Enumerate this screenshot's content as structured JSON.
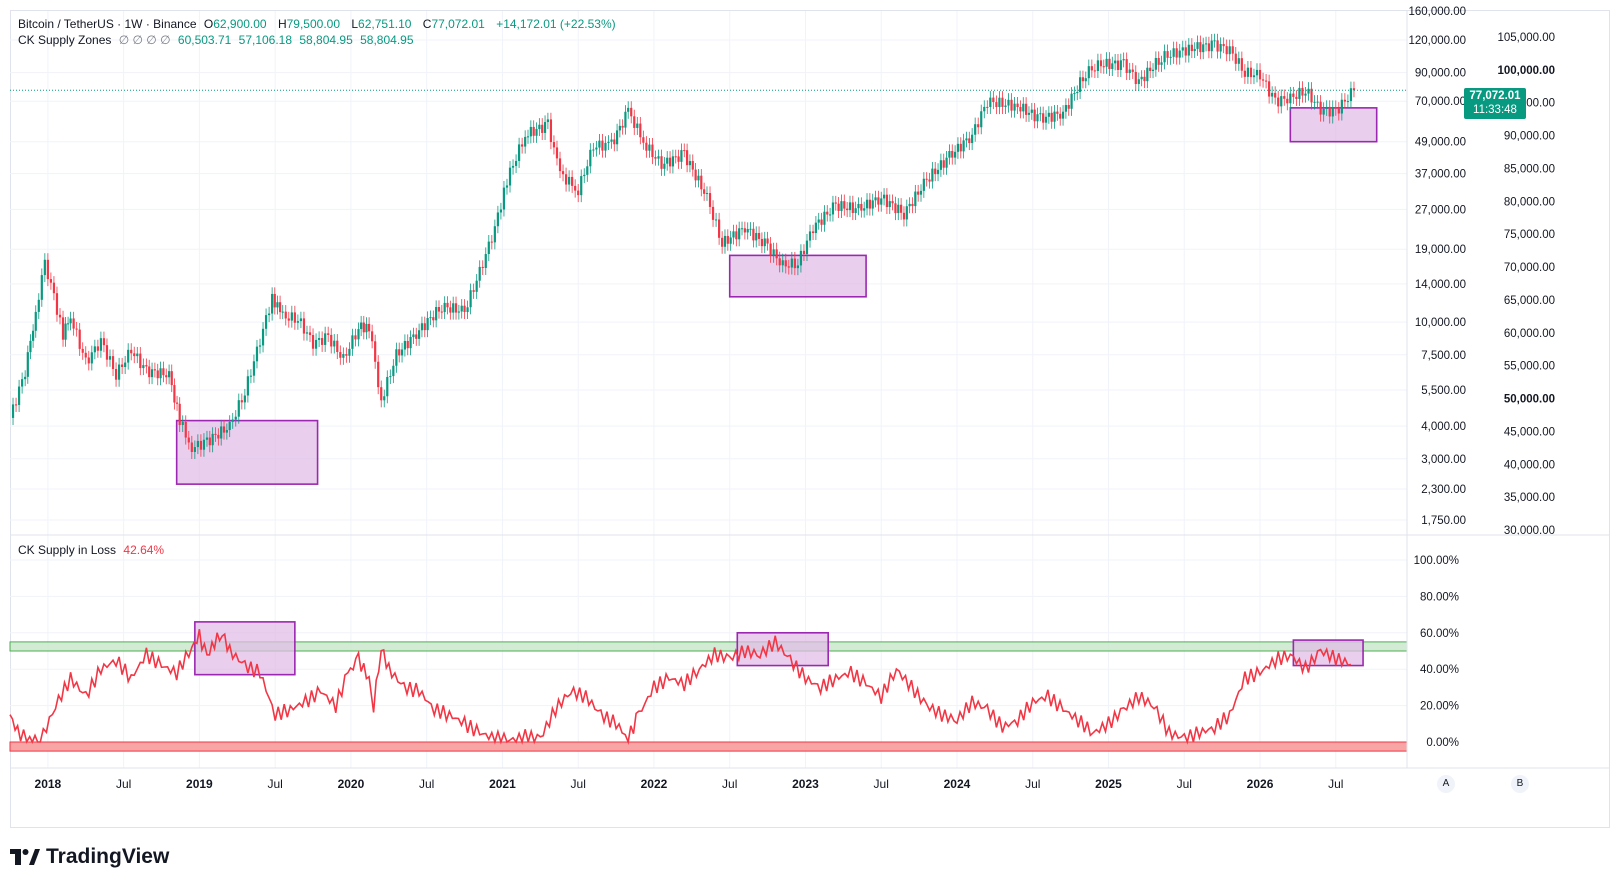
{
  "legend_main": {
    "symbol": "Bitcoin / TetherUS · 1W · Binance",
    "open_label": "O",
    "open": "62,900.00",
    "high_label": "H",
    "high": "79,500.00",
    "low_label": "L",
    "low": "62,751.10",
    "close_label": "C",
    "close": "77,072.01",
    "change": "+14,172.01 (+22.53%)"
  },
  "legend_zones": {
    "name": "CK Supply Zones",
    "placeholders": "∅ ∅ ∅ ∅",
    "values": [
      "60,503.71",
      "57,106.18",
      "58,804.95",
      "58,804.95"
    ]
  },
  "legend_loss": {
    "name": "CK Supply in Loss",
    "value": "42.64%"
  },
  "price_badge": {
    "price": "77,072.01",
    "countdown": "11:33:48"
  },
  "logo_text": "TradingView",
  "axis_buttons": {
    "auto": "A",
    "scale": "B"
  },
  "colors": {
    "up": "#089981",
    "down": "#f23645",
    "zone": "#9c27b0",
    "zone_fill": "#e1bee7",
    "band_green": "#c8e6c9",
    "band_red": "#f8a5a5",
    "loss_line": "#f23645"
  },
  "chart_data": [
    {
      "type": "candlestick",
      "title": "Bitcoin / TetherUS · 1W · Binance",
      "x_tick_labels": [
        "2018",
        "Jul",
        "2019",
        "Jul",
        "2020",
        "Jul",
        "2021",
        "Jul",
        "2022",
        "Jul",
        "2023",
        "Jul",
        "2024",
        "Jul",
        "2025",
        "Jul",
        "2026",
        "Jul"
      ],
      "x_range": [
        2017.75,
        2026.97
      ],
      "y_scale": "log",
      "left_axis_labels": [
        "160,000.00",
        "120,000.00",
        "90,000.00",
        "70,000.00",
        "49,000.00",
        "37,000.00",
        "27,000.00",
        "19,000.00",
        "14,000.00",
        "10,000.00",
        "7,500.00",
        "5,500.00",
        "4,000.00",
        "3,000.00",
        "2,300.00",
        "1,750.00"
      ],
      "right_axis_labels": [
        "105,000.00",
        "100,000.00",
        "95,000.00",
        "90,000.00",
        "85,000.00",
        "80,000.00",
        "75,000.00",
        "70,000.00",
        "65,000.00",
        "60,000.00",
        "55,000.00",
        "50,000.00",
        "45,000.00",
        "40,000.00",
        "35,000.00",
        "30,000.00"
      ],
      "last_price": 77072.01,
      "price_path": [
        [
          2017.75,
          4300
        ],
        [
          2017.85,
          6500
        ],
        [
          2017.92,
          11000
        ],
        [
          2017.98,
          16500
        ],
        [
          2018.02,
          14000
        ],
        [
          2018.1,
          9000
        ],
        [
          2018.15,
          10500
        ],
        [
          2018.25,
          7000
        ],
        [
          2018.35,
          8500
        ],
        [
          2018.45,
          6300
        ],
        [
          2018.55,
          7800
        ],
        [
          2018.65,
          6500
        ],
        [
          2018.8,
          6300
        ],
        [
          2018.87,
          4200
        ],
        [
          2018.95,
          3300
        ],
        [
          2019.05,
          3500
        ],
        [
          2019.2,
          4000
        ],
        [
          2019.3,
          5400
        ],
        [
          2019.4,
          8500
        ],
        [
          2019.48,
          12500
        ],
        [
          2019.55,
          10500
        ],
        [
          2019.65,
          10300
        ],
        [
          2019.75,
          8300
        ],
        [
          2019.85,
          8800
        ],
        [
          2019.95,
          7200
        ],
        [
          2020.05,
          9500
        ],
        [
          2020.12,
          9700
        ],
        [
          2020.2,
          5000
        ],
        [
          2020.3,
          7500
        ],
        [
          2020.45,
          9300
        ],
        [
          2020.6,
          11500
        ],
        [
          2020.75,
          11000
        ],
        [
          2020.85,
          15500
        ],
        [
          2020.95,
          23000
        ],
        [
          2021.03,
          35000
        ],
        [
          2021.15,
          52000
        ],
        [
          2021.3,
          57000
        ],
        [
          2021.38,
          37000
        ],
        [
          2021.5,
          32000
        ],
        [
          2021.6,
          47000
        ],
        [
          2021.72,
          48000
        ],
        [
          2021.83,
          64000
        ],
        [
          2021.95,
          47000
        ],
        [
          2022.05,
          40000
        ],
        [
          2022.2,
          44000
        ],
        [
          2022.35,
          30000
        ],
        [
          2022.45,
          20000
        ],
        [
          2022.6,
          23000
        ],
        [
          2022.75,
          19500
        ],
        [
          2022.85,
          16500
        ],
        [
          2022.95,
          16800
        ],
        [
          2023.05,
          23000
        ],
        [
          2023.2,
          28000
        ],
        [
          2023.35,
          27000
        ],
        [
          2023.5,
          30000
        ],
        [
          2023.65,
          26000
        ],
        [
          2023.8,
          35000
        ],
        [
          2023.95,
          43000
        ],
        [
          2024.1,
          52000
        ],
        [
          2024.2,
          70000
        ],
        [
          2024.4,
          67000
        ],
        [
          2024.55,
          60000
        ],
        [
          2024.7,
          63000
        ],
        [
          2024.85,
          90000
        ],
        [
          2024.95,
          97000
        ],
        [
          2025.1,
          97000
        ],
        [
          2025.2,
          83000
        ],
        [
          2025.35,
          103000
        ],
        [
          2025.55,
          112000
        ],
        [
          2025.7,
          115000
        ],
        [
          2025.8,
          110000
        ],
        [
          2025.9,
          90000
        ],
        [
          2026.0,
          88000
        ],
        [
          2026.1,
          70000
        ],
        [
          2026.2,
          72000
        ],
        [
          2026.3,
          77000
        ],
        [
          2026.4,
          65000
        ],
        [
          2026.5,
          64000
        ],
        [
          2026.62,
          77072
        ]
      ],
      "supply_zones": [
        {
          "x": [
            2018.85,
            2019.78
          ],
          "y": [
            2400,
            4200
          ]
        },
        {
          "x": [
            2022.5,
            2023.4
          ],
          "y": [
            12500,
            18000
          ]
        },
        {
          "x": [
            2026.2,
            2026.77
          ],
          "y": [
            49000,
            66000
          ]
        }
      ]
    },
    {
      "type": "line",
      "title": "CK Supply in Loss",
      "y_unit": "%",
      "y_tick_labels": [
        "100.00%",
        "80.00%",
        "60.00%",
        "40.00%",
        "20.00%",
        "0.00%"
      ],
      "ylim": [
        0,
        100
      ],
      "bands": [
        {
          "y": [
            50,
            55
          ],
          "color": "green"
        },
        {
          "y": [
            -5,
            0
          ],
          "color": "red"
        }
      ],
      "zones": [
        {
          "x": [
            2018.97,
            2019.63
          ],
          "y": [
            37,
            66
          ]
        },
        {
          "x": [
            2022.55,
            2023.15
          ],
          "y": [
            42,
            60
          ]
        },
        {
          "x": [
            2026.22,
            2026.68
          ],
          "y": [
            42,
            56
          ]
        }
      ],
      "series": [
        {
          "values": [
            [
              2017.75,
              15
            ],
            [
              2017.8,
              5
            ],
            [
              2017.88,
              2
            ],
            [
              2017.95,
              0
            ],
            [
              2018.05,
              20
            ],
            [
              2018.15,
              35
            ],
            [
              2018.25,
              25
            ],
            [
              2018.35,
              40
            ],
            [
              2018.45,
              45
            ],
            [
              2018.55,
              35
            ],
            [
              2018.65,
              48
            ],
            [
              2018.75,
              42
            ],
            [
              2018.85,
              38
            ],
            [
              2018.95,
              52
            ],
            [
              2019.0,
              58
            ],
            [
              2019.05,
              47
            ],
            [
              2019.1,
              55
            ],
            [
              2019.15,
              60
            ],
            [
              2019.2,
              50
            ],
            [
              2019.3,
              42
            ],
            [
              2019.4,
              38
            ],
            [
              2019.5,
              15
            ],
            [
              2019.6,
              18
            ],
            [
              2019.7,
              22
            ],
            [
              2019.8,
              28
            ],
            [
              2019.9,
              20
            ],
            [
              2019.98,
              38
            ],
            [
              2020.05,
              45
            ],
            [
              2020.12,
              35
            ],
            [
              2020.15,
              20
            ],
            [
              2020.2,
              52
            ],
            [
              2020.25,
              40
            ],
            [
              2020.35,
              30
            ],
            [
              2020.45,
              28
            ],
            [
              2020.55,
              18
            ],
            [
              2020.65,
              15
            ],
            [
              2020.75,
              10
            ],
            [
              2020.85,
              5
            ],
            [
              2020.95,
              2
            ],
            [
              2021.05,
              1
            ],
            [
              2021.15,
              3
            ],
            [
              2021.25,
              2
            ],
            [
              2021.35,
              18
            ],
            [
              2021.45,
              28
            ],
            [
              2021.55,
              25
            ],
            [
              2021.65,
              15
            ],
            [
              2021.75,
              10
            ],
            [
              2021.83,
              2
            ],
            [
              2021.9,
              15
            ],
            [
              2022.0,
              30
            ],
            [
              2022.1,
              35
            ],
            [
              2022.2,
              32
            ],
            [
              2022.3,
              40
            ],
            [
              2022.4,
              48
            ],
            [
              2022.5,
              46
            ],
            [
              2022.6,
              50
            ],
            [
              2022.7,
              48
            ],
            [
              2022.8,
              55
            ],
            [
              2022.9,
              45
            ],
            [
              2023.0,
              35
            ],
            [
              2023.1,
              30
            ],
            [
              2023.2,
              35
            ],
            [
              2023.3,
              38
            ],
            [
              2023.4,
              32
            ],
            [
              2023.5,
              25
            ],
            [
              2023.6,
              40
            ],
            [
              2023.7,
              30
            ],
            [
              2023.8,
              20
            ],
            [
              2023.9,
              15
            ],
            [
              2024.0,
              12
            ],
            [
              2024.1,
              22
            ],
            [
              2024.2,
              18
            ],
            [
              2024.3,
              8
            ],
            [
              2024.4,
              12
            ],
            [
              2024.5,
              22
            ],
            [
              2024.6,
              25
            ],
            [
              2024.7,
              18
            ],
            [
              2024.8,
              12
            ],
            [
              2024.9,
              5
            ],
            [
              2025.0,
              10
            ],
            [
              2025.1,
              18
            ],
            [
              2025.2,
              25
            ],
            [
              2025.3,
              20
            ],
            [
              2025.4,
              5
            ],
            [
              2025.5,
              2
            ],
            [
              2025.6,
              5
            ],
            [
              2025.7,
              8
            ],
            [
              2025.8,
              15
            ],
            [
              2025.9,
              35
            ],
            [
              2026.0,
              38
            ],
            [
              2026.1,
              45
            ],
            [
              2026.2,
              48
            ],
            [
              2026.3,
              40
            ],
            [
              2026.4,
              50
            ],
            [
              2026.5,
              46
            ],
            [
              2026.6,
              42.64
            ]
          ]
        }
      ]
    }
  ]
}
